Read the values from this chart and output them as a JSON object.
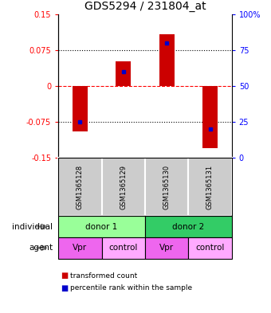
{
  "title": "GDS5294 / 231804_at",
  "samples": [
    "GSM1365128",
    "GSM1365129",
    "GSM1365130",
    "GSM1365131"
  ],
  "transformed_counts": [
    -0.095,
    0.052,
    0.108,
    -0.13
  ],
  "percentile_ranks_pct": [
    25,
    60,
    80,
    20
  ],
  "ylim": [
    -0.15,
    0.15
  ],
  "yticks_left": [
    -0.15,
    -0.075,
    0,
    0.075,
    0.15
  ],
  "yticks_right": [
    0,
    25,
    50,
    75,
    100
  ],
  "bar_color": "#cc0000",
  "dot_color": "#0000cc",
  "individual_labels": [
    "donor 1",
    "donor 2"
  ],
  "individual_colors": [
    "#99ff99",
    "#33cc66"
  ],
  "agent_labels": [
    "Vpr",
    "control",
    "Vpr",
    "control"
  ],
  "agent_colors_vpr": "#ee66ee",
  "agent_colors_ctrl": "#ffaaff",
  "sample_bg_color": "#cccccc",
  "title_fontsize": 10,
  "tick_fontsize": 7,
  "label_fontsize": 7.5,
  "legend_fontsize": 6.5
}
